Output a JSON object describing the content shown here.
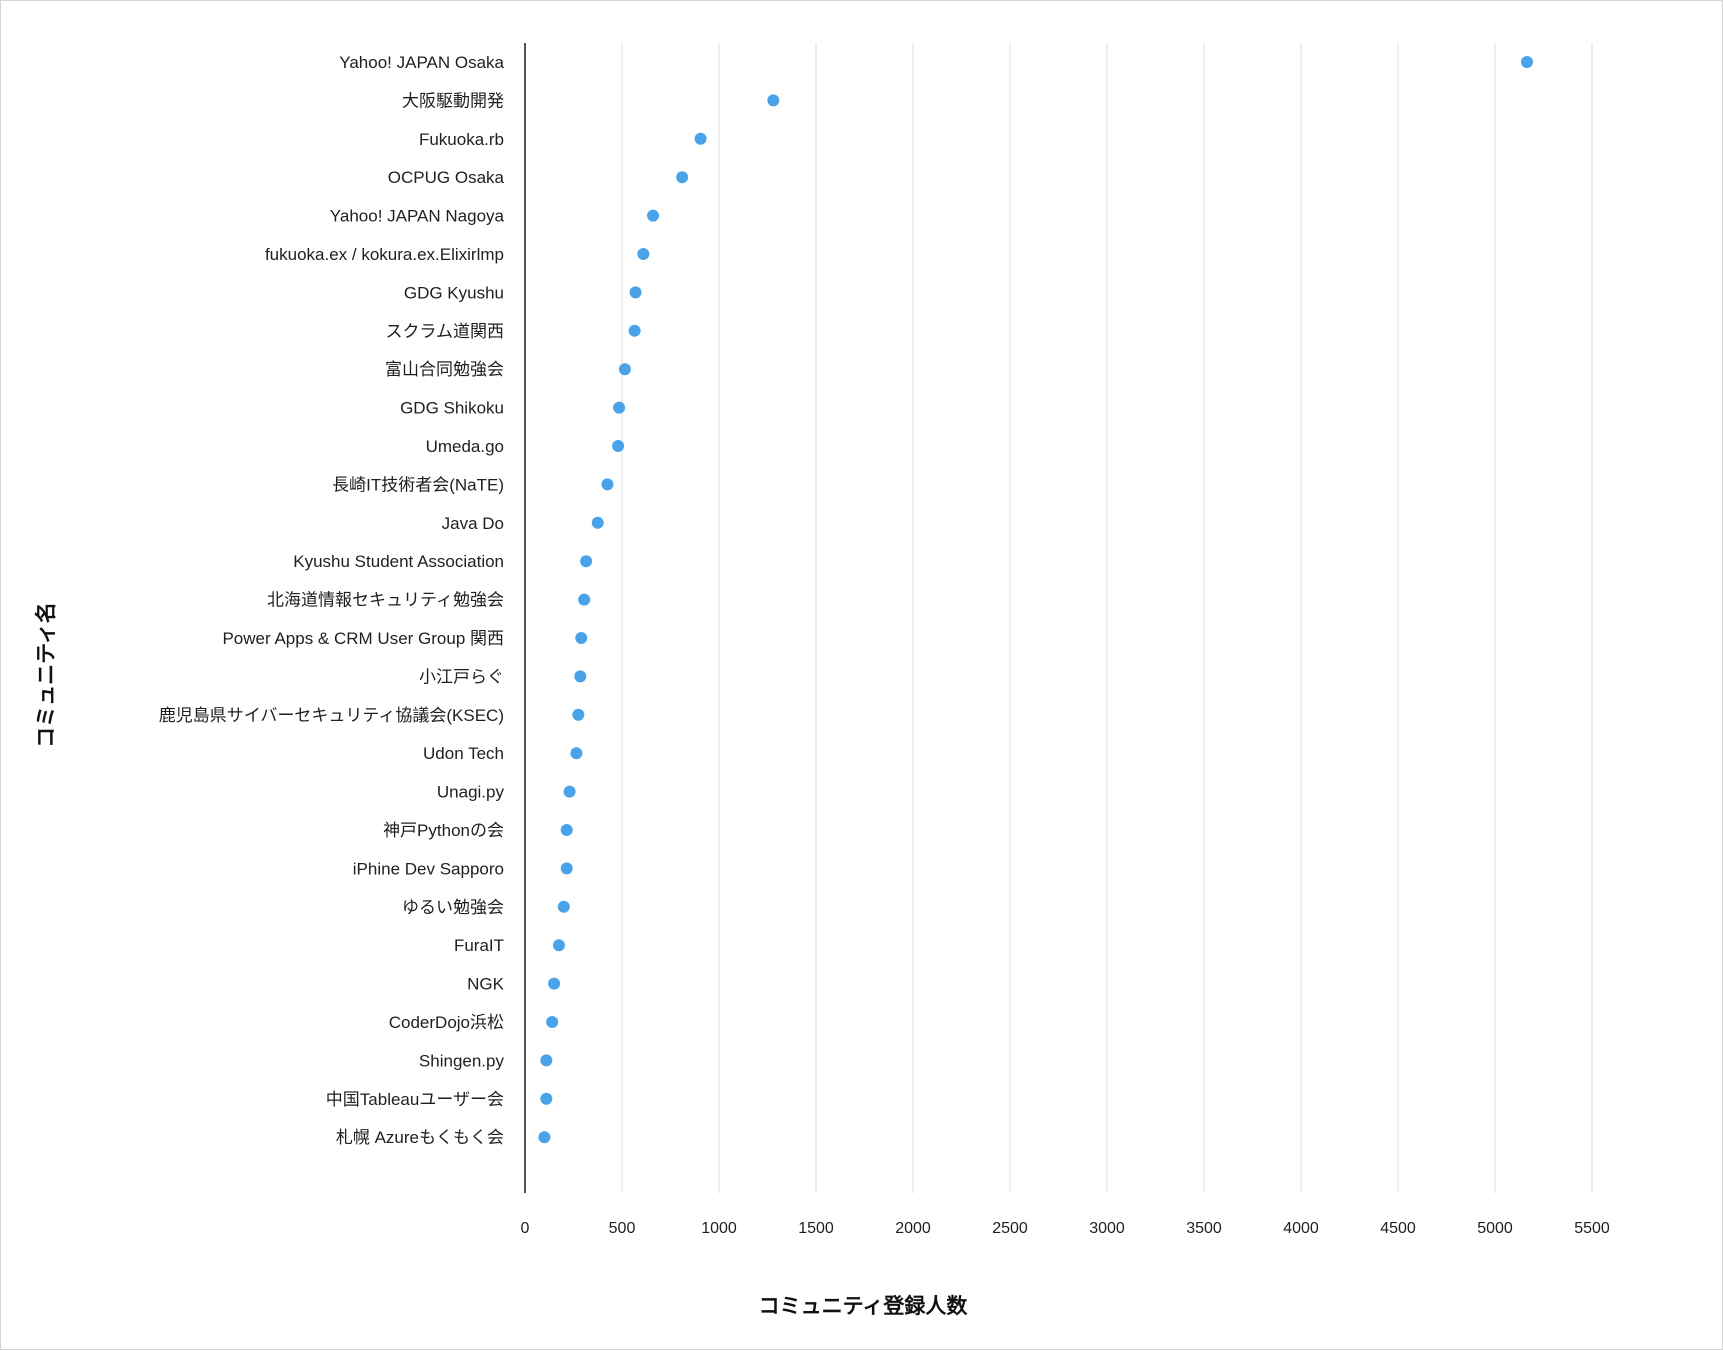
{
  "chart_data": {
    "type": "scatter",
    "orientation": "horizontal",
    "xlabel": "コミュニティ登録人数",
    "ylabel": "コミュニティ名",
    "xlim": [
      0,
      5500
    ],
    "x_ticks": [
      0,
      500,
      1000,
      1500,
      2000,
      2500,
      3000,
      3500,
      4000,
      4500,
      5000,
      5500
    ],
    "grid": "vertical",
    "marker_color": "#4aa3e8",
    "categories": [
      "Yahoo! JAPAN Osaka",
      "大阪駆動開発",
      "Fukuoka.rb",
      "OCPUG Osaka",
      "Yahoo! JAPAN Nagoya",
      "fukuoka.ex / kokura.ex.Elixirlmp",
      "GDG Kyushu",
      "スクラム道関西",
      "富山合同勉強会",
      "GDG Shikoku",
      "Umeda.go",
      "長崎IT技術者会(NaTE)",
      "Java Do",
      "Kyushu Student Association",
      "北海道情報セキュリティ勉強会",
      "Power Apps & CRM User Group 関西",
      "小江戸らぐ",
      "鹿児島県サイバーセキュリティ協議会(KSEC)",
      "Udon Tech",
      "Unagi.py",
      "神戸Pythonの会",
      "iPhine Dev Sapporo",
      "ゆるい勉強会",
      "FuraIT",
      "NGK",
      "CoderDojo浜松",
      "Shingen.py",
      "中国Tableauユーザー会",
      "札幌 Azureもくもく会"
    ],
    "values": [
      5165,
      1280,
      905,
      810,
      660,
      610,
      570,
      565,
      515,
      485,
      480,
      425,
      375,
      315,
      305,
      290,
      285,
      275,
      265,
      230,
      215,
      215,
      200,
      175,
      150,
      140,
      110,
      110,
      100
    ]
  }
}
